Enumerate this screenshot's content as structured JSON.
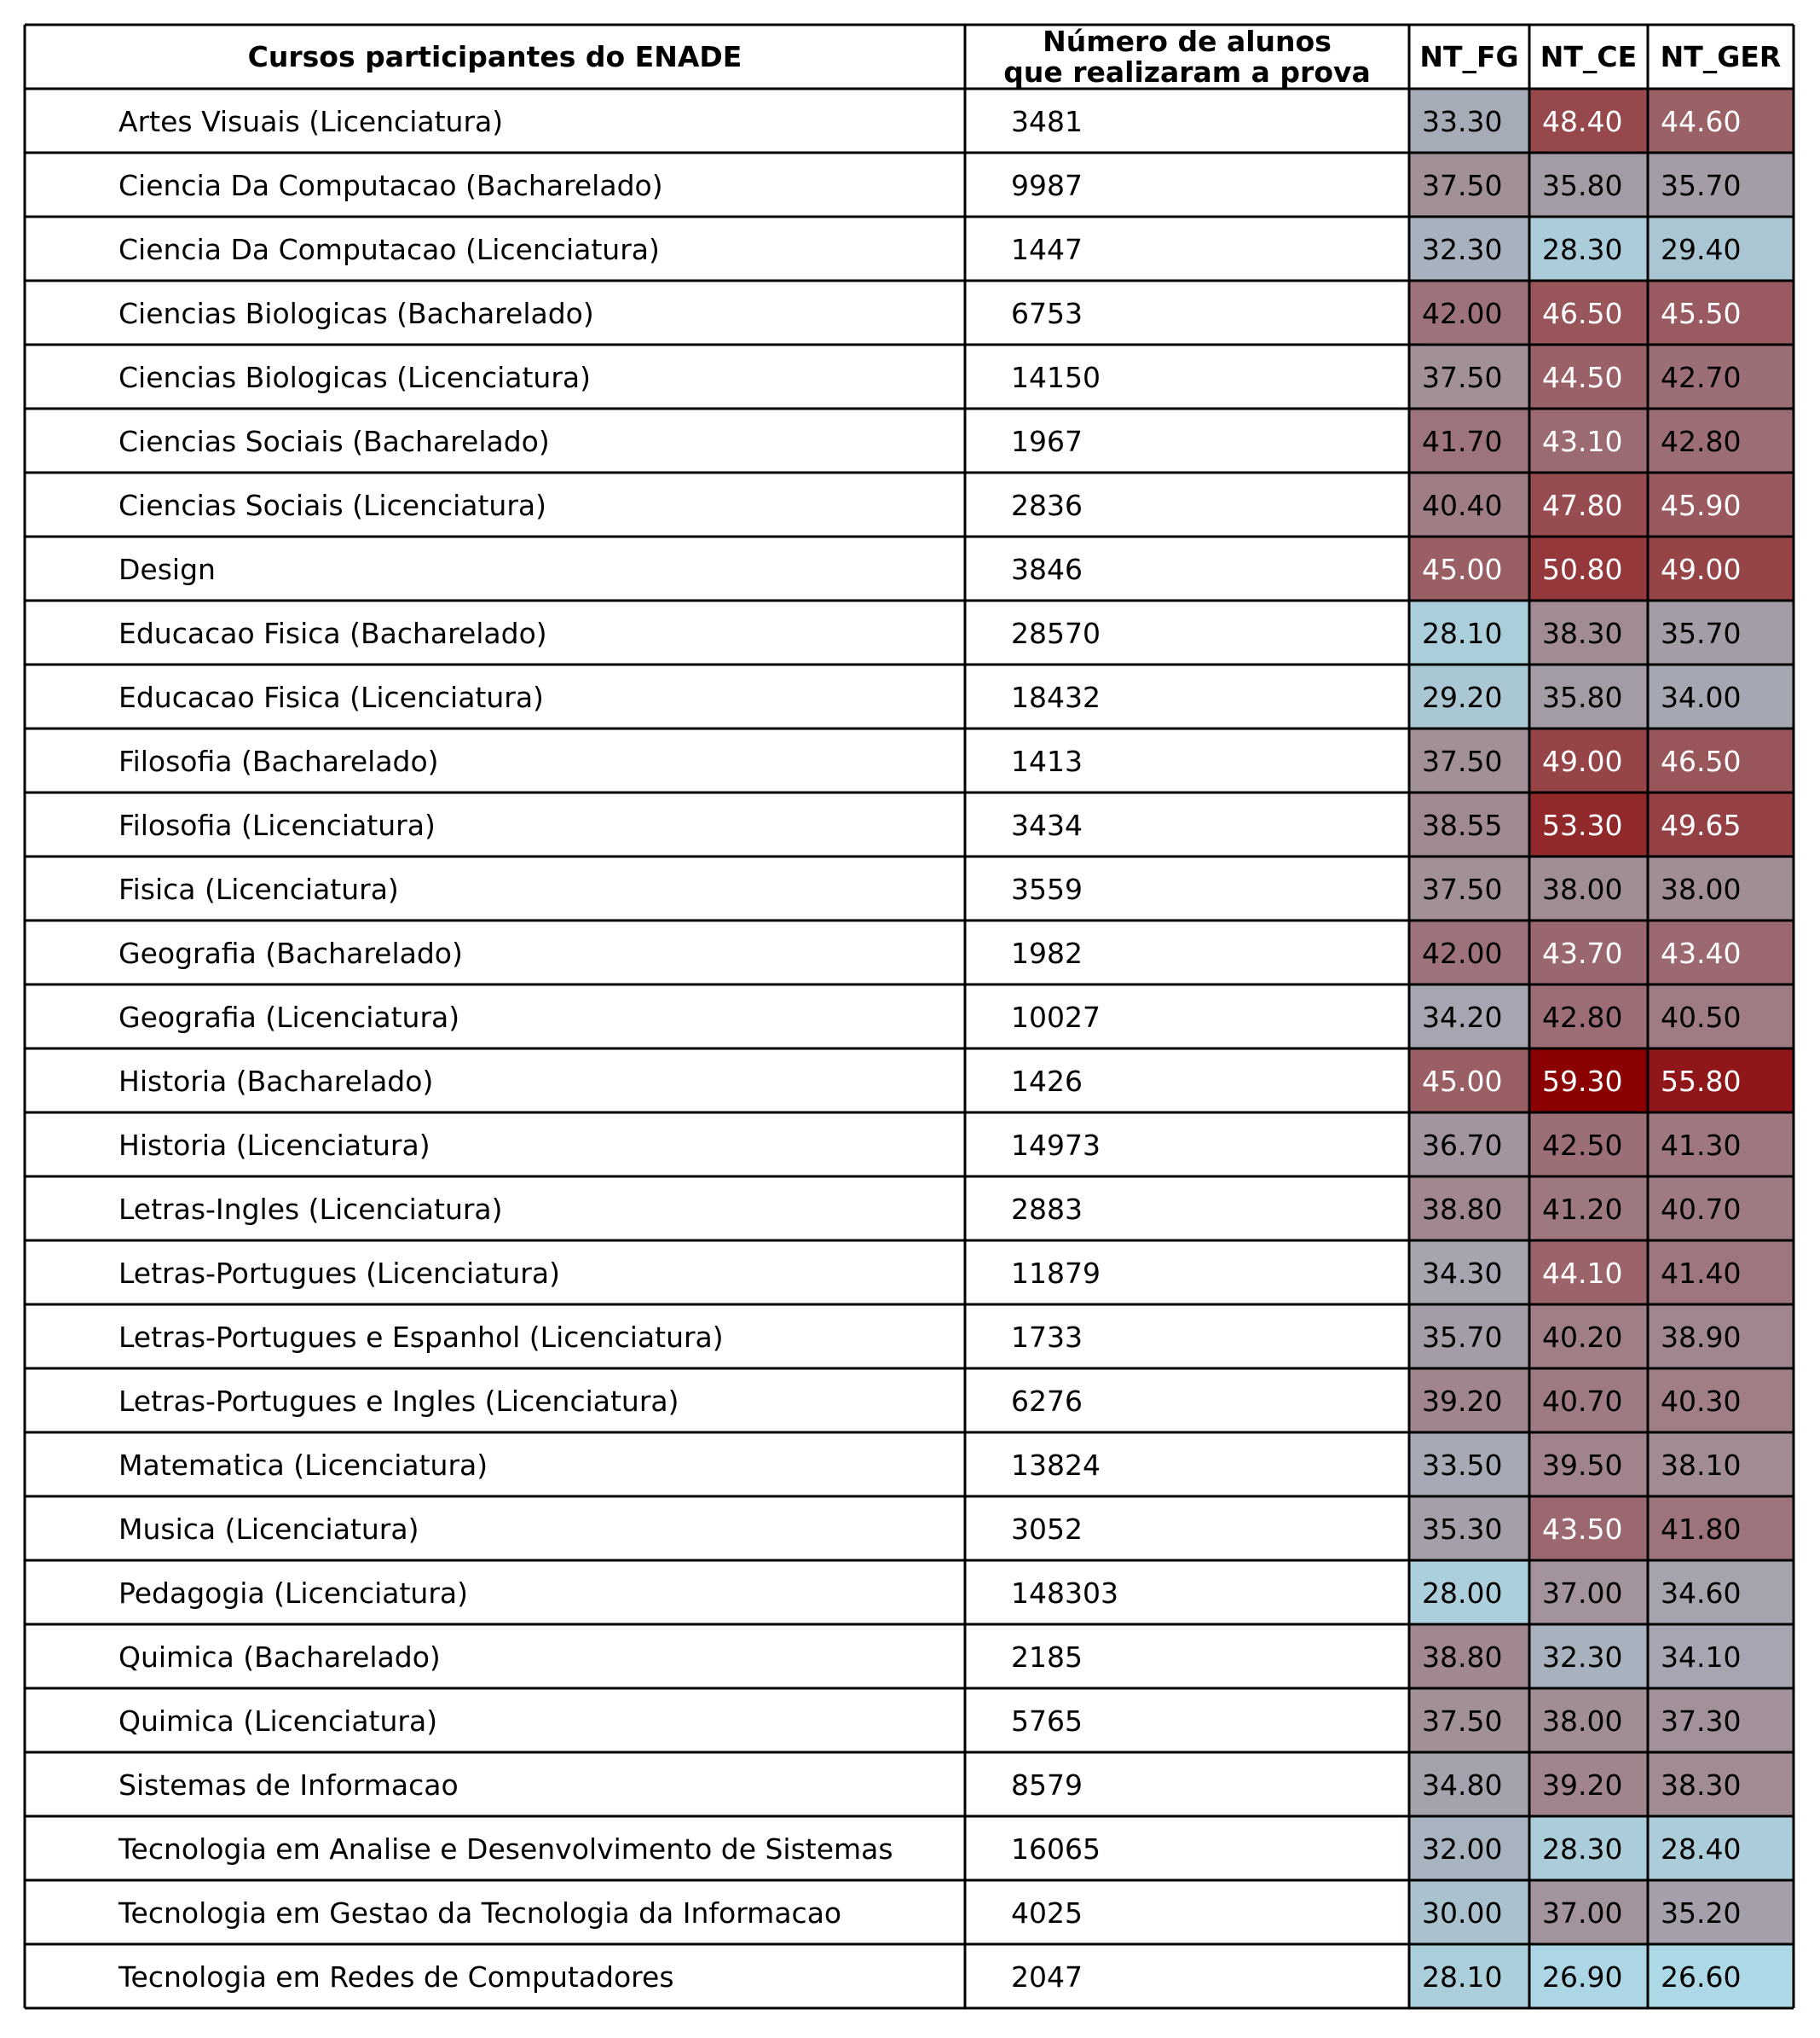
{
  "chart_data": {
    "type": "table",
    "columns": [
      "Cursos participantes do ENADE",
      "Número de alunos\nque realizaram a prova",
      "NT_FG",
      "NT_CE",
      "NT_GER"
    ],
    "rows": [
      [
        "Artes Visuais (Licenciatura)",
        "3481",
        "33.30",
        "48.40",
        "44.60"
      ],
      [
        "Ciencia Da Computacao (Bacharelado)",
        "9987",
        "37.50",
        "35.80",
        "35.70"
      ],
      [
        "Ciencia Da Computacao (Licenciatura)",
        "1447",
        "32.30",
        "28.30",
        "29.40"
      ],
      [
        "Ciencias Biologicas (Bacharelado)",
        "6753",
        "42.00",
        "46.50",
        "45.50"
      ],
      [
        "Ciencias Biologicas (Licenciatura)",
        "14150",
        "37.50",
        "44.50",
        "42.70"
      ],
      [
        "Ciencias Sociais (Bacharelado)",
        "1967",
        "41.70",
        "43.10",
        "42.80"
      ],
      [
        "Ciencias Sociais (Licenciatura)",
        "2836",
        "40.40",
        "47.80",
        "45.90"
      ],
      [
        "Design",
        "3846",
        "45.00",
        "50.80",
        "49.00"
      ],
      [
        "Educacao Fisica (Bacharelado)",
        "28570",
        "28.10",
        "38.30",
        "35.70"
      ],
      [
        "Educacao Fisica (Licenciatura)",
        "18432",
        "29.20",
        "35.80",
        "34.00"
      ],
      [
        "Filosofia (Bacharelado)",
        "1413",
        "37.50",
        "49.00",
        "46.50"
      ],
      [
        "Filosofia (Licenciatura)",
        "3434",
        "38.55",
        "53.30",
        "49.65"
      ],
      [
        "Fisica (Licenciatura)",
        "3559",
        "37.50",
        "38.00",
        "38.00"
      ],
      [
        "Geografia (Bacharelado)",
        "1982",
        "42.00",
        "43.70",
        "43.40"
      ],
      [
        "Geografia (Licenciatura)",
        "10027",
        "34.20",
        "42.80",
        "40.50"
      ],
      [
        "Historia (Bacharelado)",
        "1426",
        "45.00",
        "59.30",
        "55.80"
      ],
      [
        "Historia (Licenciatura)",
        "14973",
        "36.70",
        "42.50",
        "41.30"
      ],
      [
        "Letras-Ingles (Licenciatura)",
        "2883",
        "38.80",
        "41.20",
        "40.70"
      ],
      [
        "Letras-Portugues (Licenciatura)",
        "11879",
        "34.30",
        "44.10",
        "41.40"
      ],
      [
        "Letras-Portugues e Espanhol (Licenciatura)",
        "1733",
        "35.70",
        "40.20",
        "38.90"
      ],
      [
        "Letras-Portugues e Ingles (Licenciatura)",
        "6276",
        "39.20",
        "40.70",
        "40.30"
      ],
      [
        "Matematica (Licenciatura)",
        "13824",
        "33.50",
        "39.50",
        "38.10"
      ],
      [
        "Musica (Licenciatura)",
        "3052",
        "35.30",
        "43.50",
        "41.80"
      ],
      [
        "Pedagogia (Licenciatura)",
        "148303",
        "28.00",
        "37.00",
        "34.60"
      ],
      [
        "Quimica (Bacharelado)",
        "2185",
        "38.80",
        "32.30",
        "34.10"
      ],
      [
        "Quimica (Licenciatura)",
        "5765",
        "37.50",
        "38.00",
        "37.30"
      ],
      [
        "Sistemas de Informacao",
        "8579",
        "34.80",
        "39.20",
        "38.30"
      ],
      [
        "Tecnologia em Analise e Desenvolvimento de Sistemas",
        "16065",
        "32.00",
        "28.30",
        "28.40"
      ],
      [
        "Tecnologia em Gestao da Tecnologia da Informacao",
        "4025",
        "30.00",
        "37.00",
        "35.20"
      ],
      [
        "Tecnologia em Redes de Computadores",
        "2047",
        "28.10",
        "26.90",
        "26.60"
      ]
    ],
    "heatmap": {
      "applies_to": [
        "NT_FG",
        "NT_CE",
        "NT_GER"
      ],
      "low_color": "#add8e6",
      "high_color": "#8b0000",
      "white_text_threshold": 43.0
    },
    "grid": true
  }
}
